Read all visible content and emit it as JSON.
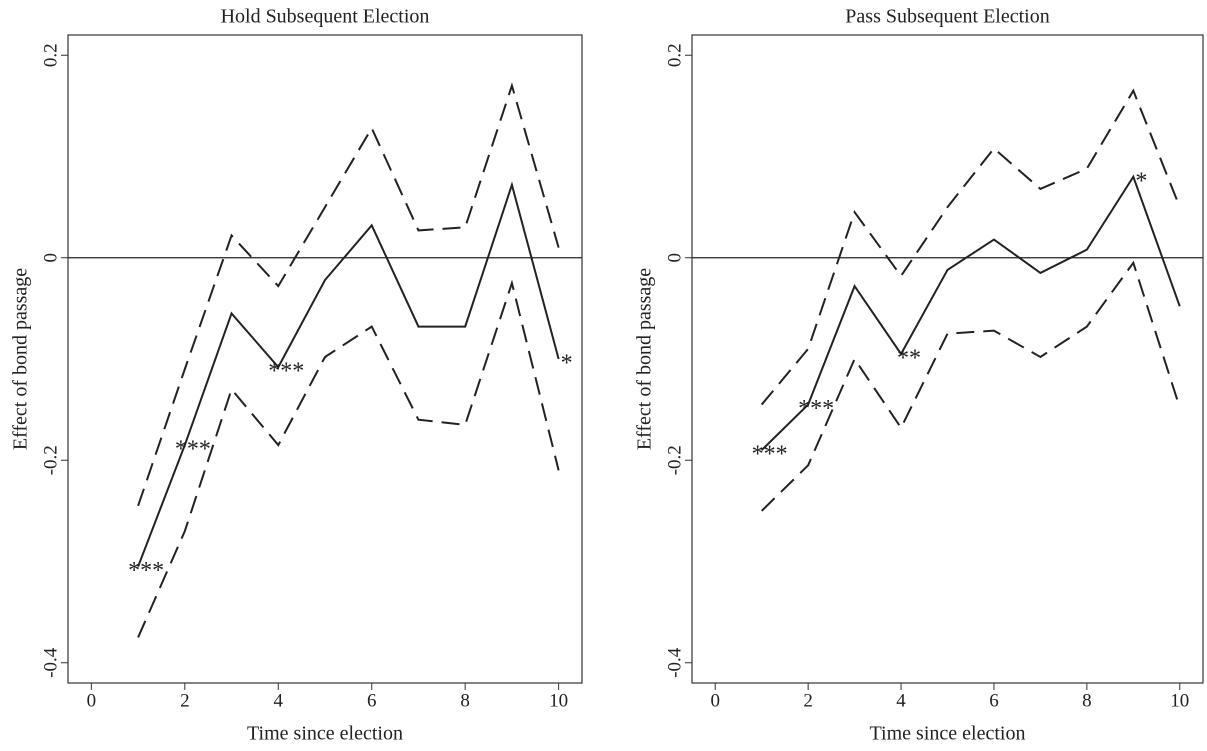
{
  "chart_data": [
    {
      "type": "line",
      "title": "Hold Subsequent Election",
      "x_label": "Time since election",
      "y_label": "Effect of bond passage",
      "x": [
        1,
        2,
        3,
        4,
        5,
        6,
        7,
        8,
        9,
        10
      ],
      "series": [
        {
          "style": "solid",
          "color": "#222222",
          "values": [
            -0.305,
            -0.185,
            -0.055,
            -0.108,
            -0.022,
            0.032,
            -0.068,
            -0.068,
            0.072,
            -0.1
          ]
        },
        {
          "style": "dashed",
          "color": "#222222",
          "values": [
            -0.245,
            -0.11,
            0.022,
            -0.028,
            0.05,
            0.128,
            0.027,
            0.03,
            0.17,
            0.01
          ]
        },
        {
          "style": "dashed",
          "color": "#222222",
          "values": [
            -0.375,
            -0.27,
            -0.13,
            -0.185,
            -0.098,
            -0.068,
            -0.16,
            -0.165,
            -0.025,
            -0.21
          ]
        }
      ],
      "significance": [
        "***",
        "***",
        null,
        "***",
        null,
        null,
        null,
        null,
        null,
        "*"
      ],
      "hline": 0,
      "xlim": [
        -0.5,
        10.5
      ],
      "xticks": [
        0,
        2,
        4,
        6,
        8,
        10
      ],
      "ylim": [
        -0.42,
        0.22
      ],
      "yticks": [
        -0.4,
        -0.2,
        0,
        0.2
      ]
    },
    {
      "type": "line",
      "title": "Pass Subsequent Election",
      "x_label": "Time since election",
      "y_label": "Effect of bond passage",
      "x": [
        1,
        2,
        3,
        4,
        5,
        6,
        7,
        8,
        9,
        10
      ],
      "series": [
        {
          "style": "solid",
          "color": "#222222",
          "values": [
            -0.19,
            -0.145,
            -0.028,
            -0.095,
            -0.012,
            0.018,
            -0.015,
            0.008,
            0.08,
            -0.048
          ]
        },
        {
          "style": "dashed",
          "color": "#222222",
          "values": [
            -0.145,
            -0.09,
            0.045,
            -0.018,
            0.05,
            0.108,
            0.068,
            0.088,
            0.165,
            0.05
          ]
        },
        {
          "style": "dashed",
          "color": "#222222",
          "values": [
            -0.25,
            -0.205,
            -0.1,
            -0.168,
            -0.075,
            -0.072,
            -0.098,
            -0.068,
            -0.005,
            -0.148
          ]
        }
      ],
      "significance": [
        "***",
        "***",
        null,
        "**",
        null,
        null,
        null,
        null,
        "*",
        null
      ],
      "hline": 0,
      "xlim": [
        -0.5,
        10.5
      ],
      "xticks": [
        0,
        2,
        4,
        6,
        8,
        10
      ],
      "ylim": [
        -0.42,
        0.22
      ],
      "yticks": [
        -0.4,
        -0.2,
        0,
        0.2
      ]
    }
  ]
}
